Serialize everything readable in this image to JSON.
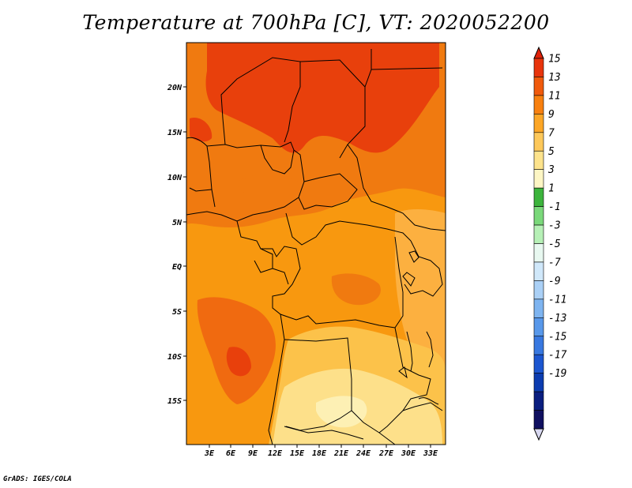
{
  "title": "Temperature at 700hPa [C], VT: 2020052200",
  "credit": "GrADS: IGES/COLA",
  "map": {
    "lat_labels": [
      "20N",
      "15N",
      "10N",
      "5N",
      "EQ",
      "5S",
      "10S",
      "15S"
    ],
    "lon_labels": [
      "3E",
      "6E",
      "9E",
      "12E",
      "15E",
      "18E",
      "21E",
      "24E",
      "27E",
      "30E",
      "33E"
    ]
  },
  "colorbar": {
    "labels": [
      "15",
      "13",
      "11",
      "9",
      "7",
      "5",
      "3",
      "1",
      "-1",
      "-3",
      "-5",
      "-7",
      "-9",
      "-11",
      "-13",
      "-15",
      "-17",
      "-19"
    ],
    "colors": [
      "#e8340c",
      "#f05a0c",
      "#f8800f",
      "#fca626",
      "#fdc85a",
      "#fde38c",
      "#fdf6c4",
      "#3cb43c",
      "#7ad87a",
      "#b6f0b6",
      "#e8f8f0",
      "#d0e8fa",
      "#aad0f6",
      "#7eb4f0",
      "#5898ea",
      "#3878e0",
      "#1c56d0",
      "#0c3cb0",
      "#0a1e80",
      "#101060"
    ],
    "under_color": "#d8d8f0",
    "over_color": "#e0220a"
  }
}
